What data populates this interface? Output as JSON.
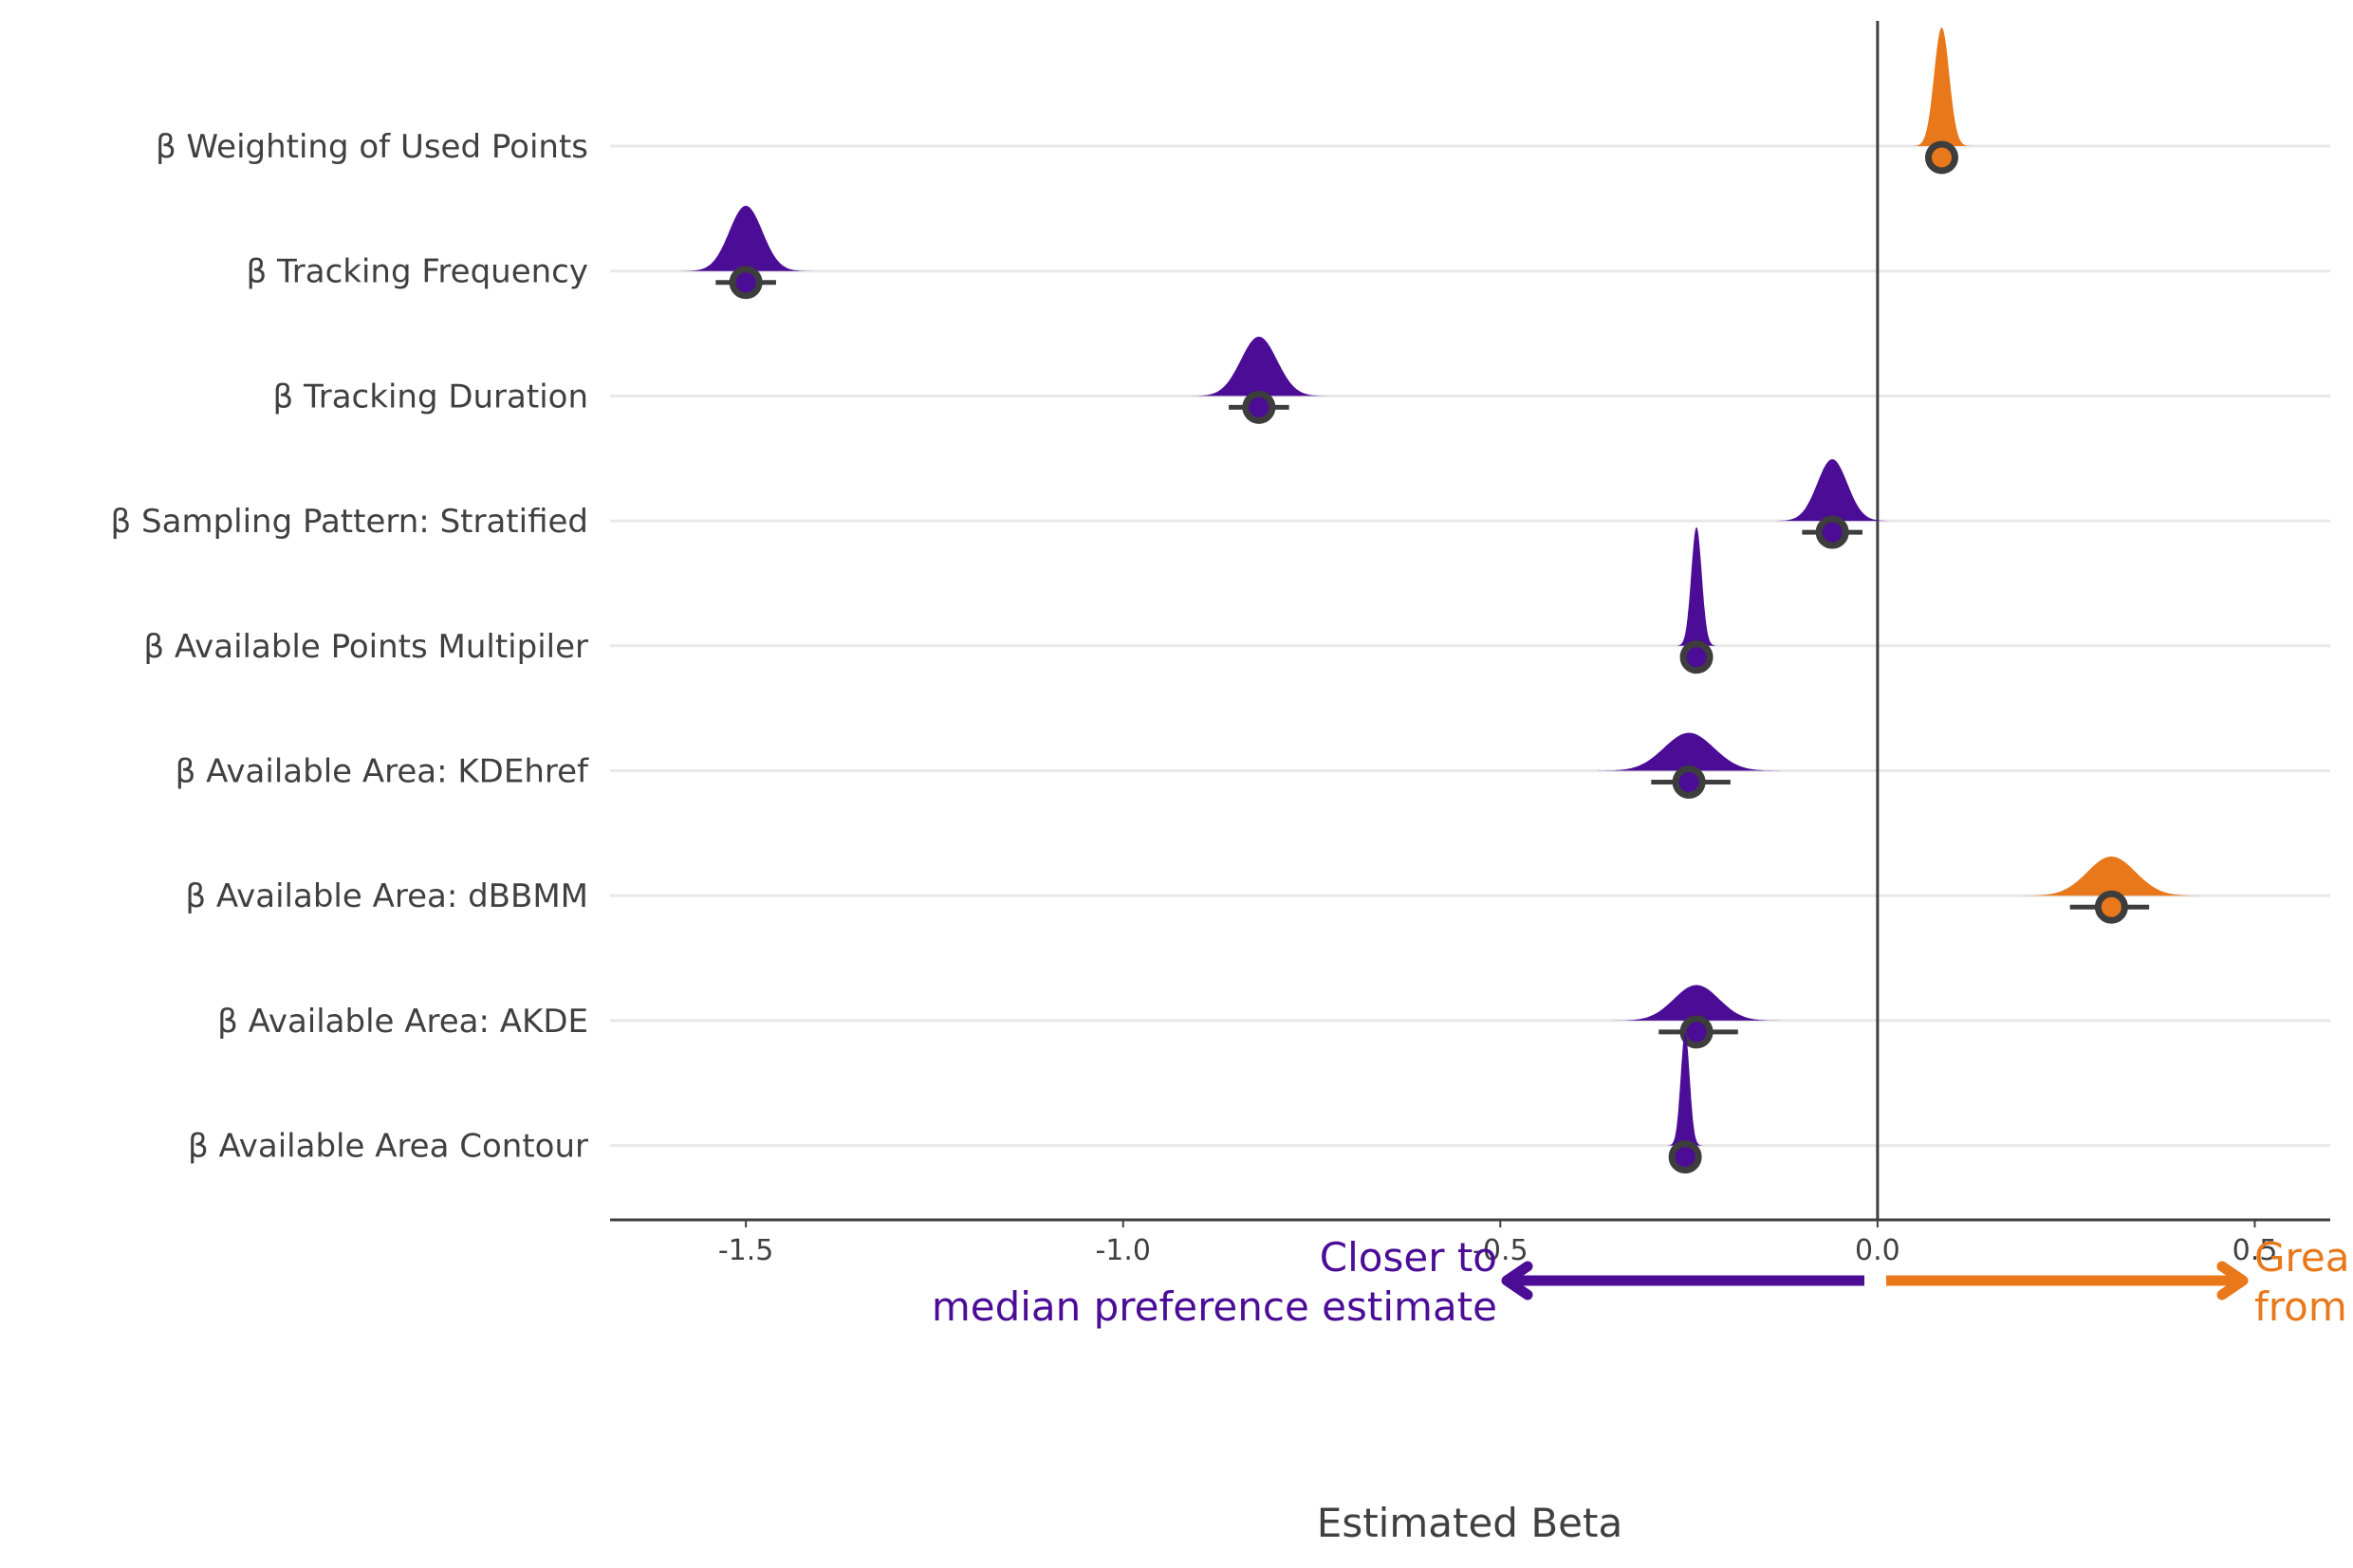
{
  "chart_data": {
    "type": "halfeye",
    "xlabel": "Estimated Beta",
    "xlim": [
      -1.68,
      0.6
    ],
    "x_ticks": [
      "-1.5",
      "-1.0",
      "-0.5",
      "0.0",
      "0.5"
    ],
    "x_tick_values": [
      -1.5,
      -1.0,
      -0.5,
      0.0,
      0.5
    ],
    "grid": "horizontal",
    "reference_line": 0.0,
    "colors": {
      "negative": "#4B0C96",
      "positive": "#E8781A",
      "point_outline": "#3D3D3D",
      "axis": "#404040",
      "grid": "#E8E8E8"
    },
    "series": [
      {
        "label": "β Weighting of Used Points",
        "median": 0.085,
        "interval": [
          0.075,
          0.095
        ],
        "spread": 0.01,
        "height": 1.0
      },
      {
        "label": "β Tracking Frequency",
        "median": -1.5,
        "interval": [
          -1.54,
          -1.46
        ],
        "spread": 0.022,
        "height": 0.55
      },
      {
        "label": "β Tracking Duration",
        "median": -0.82,
        "interval": [
          -0.86,
          -0.78
        ],
        "spread": 0.024,
        "height": 0.5
      },
      {
        "label": "β Sampling Pattern: Stratified",
        "median": -0.06,
        "interval": [
          -0.1,
          -0.02
        ],
        "spread": 0.02,
        "height": 0.52
      },
      {
        "label": "β Available Points Multipiler",
        "median": -0.24,
        "interval": [
          -0.255,
          -0.225
        ],
        "spread": 0.007,
        "height": 1.0
      },
      {
        "label": "β Available Area: KDEhref",
        "median": -0.25,
        "interval": [
          -0.3,
          -0.195
        ],
        "spread": 0.033,
        "height": 0.32
      },
      {
        "label": "β Available Area: dBBMM",
        "median": 0.31,
        "interval": [
          0.255,
          0.36
        ],
        "spread": 0.032,
        "height": 0.33
      },
      {
        "label": "β Available Area: AKDE",
        "median": -0.24,
        "interval": [
          -0.29,
          -0.185
        ],
        "spread": 0.03,
        "height": 0.3
      },
      {
        "label": "β Available Area Contour",
        "median": -0.255,
        "interval": [
          -0.27,
          -0.24
        ],
        "spread": 0.006,
        "height": 0.95
      }
    ]
  },
  "annotations": {
    "left_line1": "Closer to",
    "left_line2": "median preference estimate",
    "right_line1": "Grea",
    "right_line2": "from"
  }
}
